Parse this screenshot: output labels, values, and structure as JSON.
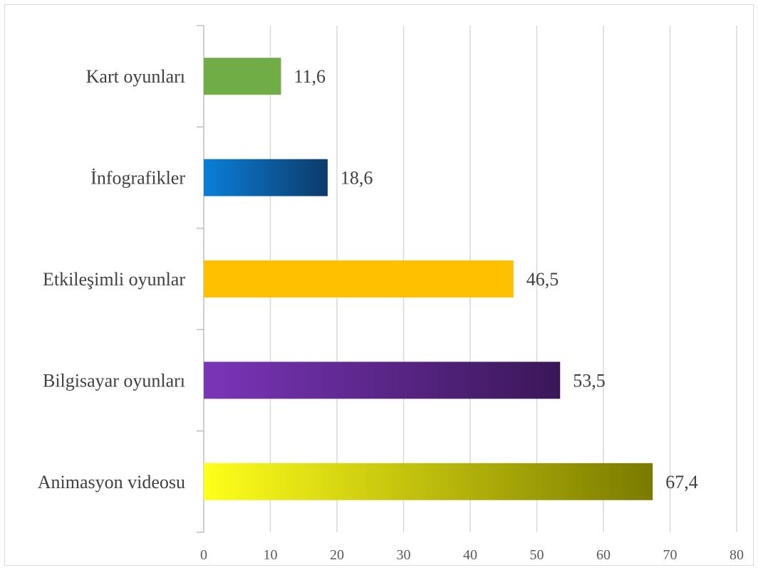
{
  "chart_data": {
    "type": "bar",
    "orientation": "horizontal",
    "categories": [
      "Kart oyunları",
      "İnfografikler",
      "Etkileşimli oyunlar",
      "Bilgisayar oyunları",
      "Animasyon videosu"
    ],
    "values": [
      11.6,
      18.6,
      46.5,
      53.5,
      67.4
    ],
    "value_labels": [
      "11,6",
      "18,6",
      "46,5",
      "53,5",
      "67,4"
    ],
    "xlim": [
      0,
      80
    ],
    "xticks": [
      0,
      10,
      20,
      30,
      40,
      50,
      60,
      70,
      80
    ],
    "xtick_labels": [
      "0",
      "10",
      "20",
      "30",
      "40",
      "50",
      "60",
      "70",
      "80"
    ],
    "grid": "vertical",
    "title": "",
    "xlabel": "",
    "ylabel": "",
    "bar_colors": [
      [
        "#70ad47",
        "#70ad47"
      ],
      [
        "#0a7fd8",
        "#0d3a6a"
      ],
      [
        "#ffc000",
        "#ffc000"
      ],
      [
        "#7a35b8",
        "#3a1758"
      ],
      [
        "#ffff1a",
        "#7a7a00"
      ]
    ],
    "grid_color": "#d9d9d9",
    "axis_color": "#bfbfbf"
  }
}
